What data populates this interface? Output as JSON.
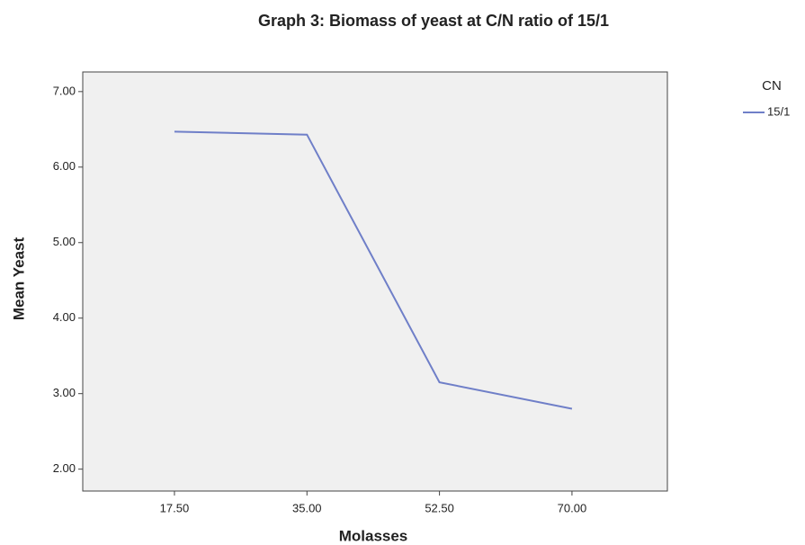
{
  "chart_data": {
    "type": "line",
    "title": "Graph 3: Biomass of yeast at C/N ratio of 15/1",
    "x_label": "Molasses",
    "y_label": "Mean Yeast",
    "x": [
      17.5,
      35,
      52.5,
      70
    ],
    "xlim": [
      5.39,
      82.6
    ],
    "xticks": [
      {
        "value": 17.5,
        "label": "17.50"
      },
      {
        "value": 35,
        "label": "35.00"
      },
      {
        "value": 52.5,
        "label": "52.50"
      },
      {
        "value": 70,
        "label": "70.00"
      }
    ],
    "ylim": [
      1.71,
      7.26
    ],
    "yticks": [
      {
        "value": 2,
        "label": "2.00"
      },
      {
        "value": 3,
        "label": "3.00"
      },
      {
        "value": 4,
        "label": "4.00"
      },
      {
        "value": 5,
        "label": "5.00"
      },
      {
        "value": 6,
        "label": "6.00"
      },
      {
        "value": 7,
        "label": "7.00"
      }
    ],
    "legend_title": "CN",
    "legend": "upper right outside",
    "series": [
      {
        "name": "15/1",
        "color": "#6f7fc8",
        "values": [
          6.47,
          6.43,
          3.15,
          2.8
        ]
      }
    ]
  }
}
